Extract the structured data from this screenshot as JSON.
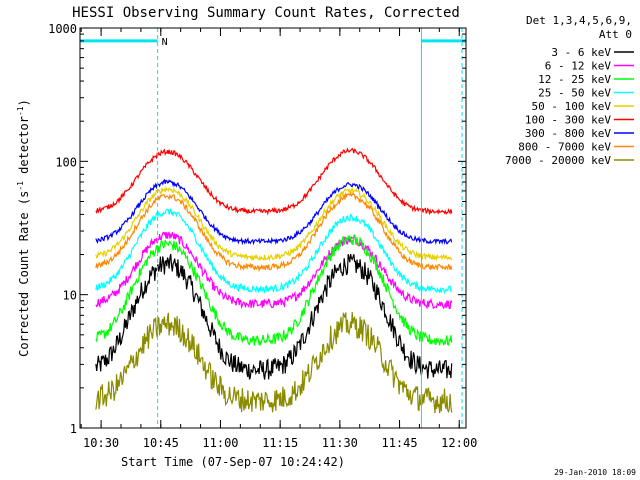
{
  "chart_data": {
    "type": "line",
    "title": "HESSI Observing Summary Count Rates, Corrected",
    "xlabel": "Start Time (07-Sep-07 10:24:42)",
    "ylabel_main": "Corrected Count Rate (s",
    "ylabel_sup1": "-1",
    "ylabel_mid": " detector",
    "ylabel_sup2": "-1",
    "ylabel_end": ")",
    "y_scale": "log",
    "ylim": [
      1,
      1000
    ],
    "y_ticks": [
      {
        "value": 1,
        "label": "1"
      },
      {
        "value": 10,
        "label": "10"
      },
      {
        "value": 100,
        "label": "100"
      },
      {
        "value": 1000,
        "label": "1000"
      }
    ],
    "x_unit": "minutes after 10:24:42",
    "xlim": [
      0,
      97
    ],
    "x_ticks": [
      {
        "value": 5.3,
        "label": "10:30"
      },
      {
        "value": 20.3,
        "label": "10:45"
      },
      {
        "value": 35.3,
        "label": "11:00"
      },
      {
        "value": 50.3,
        "label": "11:15"
      },
      {
        "value": 65.3,
        "label": "11:30"
      },
      {
        "value": 80.3,
        "label": "11:45"
      },
      {
        "value": 95.3,
        "label": "12:00"
      }
    ],
    "legend": {
      "header1": "Det 1,3,4,5,6,9,",
      "header2": "Att 0",
      "placement": "right, outside plot"
    },
    "flags": {
      "color": "#00e5ee",
      "label": "N",
      "night_segments": [
        [
          0,
          19.5
        ],
        [
          85.8,
          97
        ]
      ],
      "boundaries": [
        19.5,
        85.8
      ],
      "night_dashed_lines": [
        19.5,
        96
      ]
    },
    "series": [
      {
        "name": "3 - 6 keV",
        "color": "#000000",
        "base": 2.7,
        "peaks": [
          17,
          17
        ],
        "noise": 0.18
      },
      {
        "name": "6 - 12 keV",
        "color": "#ff00ff",
        "base": 8.5,
        "peaks": [
          28,
          26
        ],
        "noise": 0.08
      },
      {
        "name": "12 - 25 keV",
        "color": "#00ff00",
        "base": 4.5,
        "peaks": [
          24,
          26
        ],
        "noise": 0.1
      },
      {
        "name": "25 - 50 keV",
        "color": "#00ffff",
        "base": 11,
        "peaks": [
          42,
          38
        ],
        "noise": 0.06
      },
      {
        "name": "50 - 100 keV",
        "color": "#e6d000",
        "base": 19,
        "peaks": [
          62,
          60
        ],
        "noise": 0.05
      },
      {
        "name": "100 - 300 keV",
        "color": "#ff0000",
        "base": 42,
        "peaks": [
          118,
          120
        ],
        "noise": 0.04
      },
      {
        "name": "300 - 800 keV",
        "color": "#0000ff",
        "base": 25,
        "peaks": [
          70,
          67
        ],
        "noise": 0.04
      },
      {
        "name": "800 - 7000 keV",
        "color": "#ff8800",
        "base": 16,
        "peaks": [
          55,
          55
        ],
        "noise": 0.05
      },
      {
        "name": "7000 - 20000 keV",
        "color": "#8b8b00",
        "base": 1.6,
        "peaks": [
          6,
          6
        ],
        "noise": 0.22
      }
    ],
    "peak_times": [
      22,
      68
    ],
    "peak_width": 8.5,
    "gap_intervals": [
      [
        0,
        4
      ],
      [
        93.5,
        97
      ]
    ]
  },
  "footer": {
    "timestamp": "29-Jan-2010 18:09"
  }
}
